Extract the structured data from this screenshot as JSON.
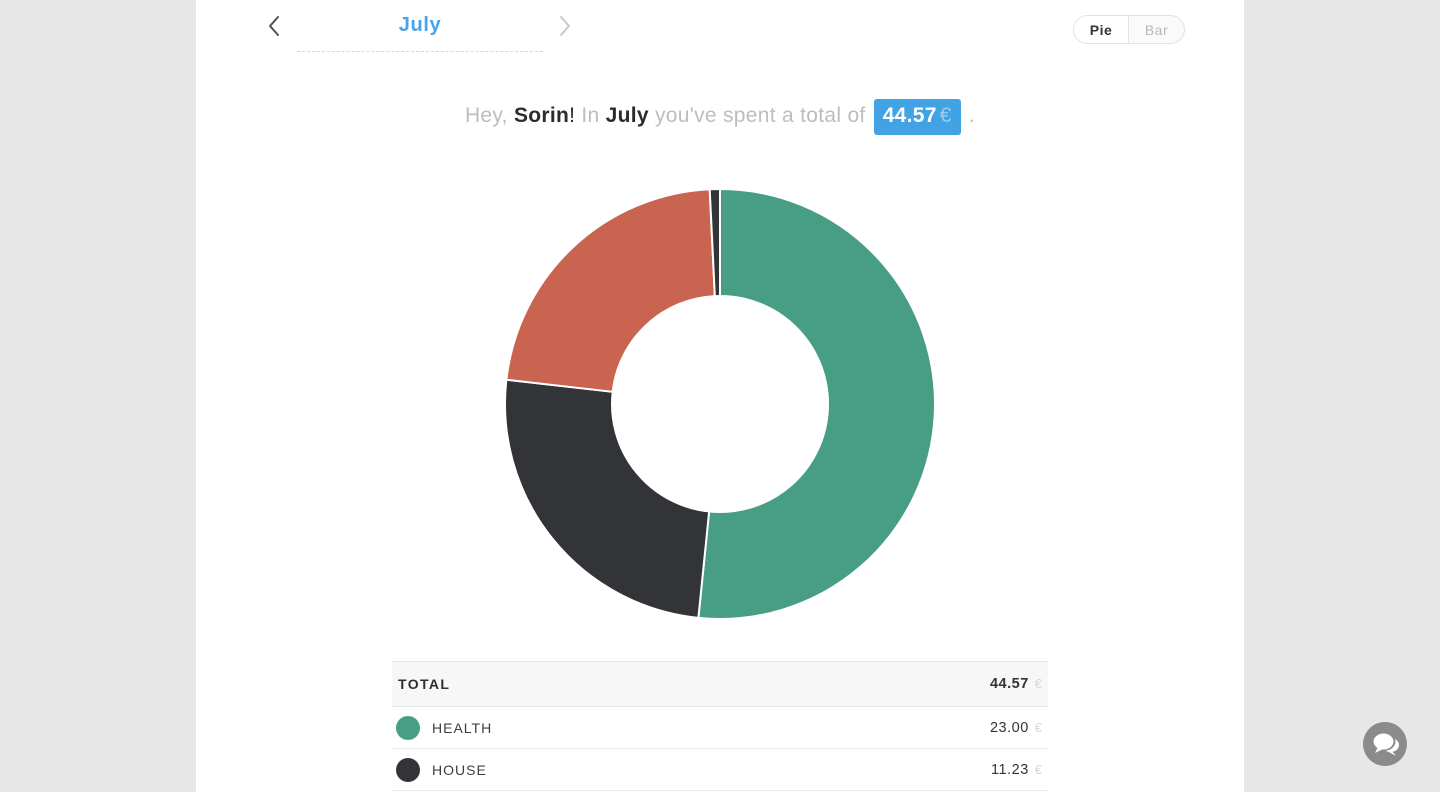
{
  "header": {
    "month": "July",
    "icons": {
      "prev": "chevron-left",
      "next": "chevron-right"
    },
    "toggle": {
      "pie": "Pie",
      "bar": "Bar",
      "active": "Pie"
    }
  },
  "greeting": {
    "segments": [
      {
        "text": "Hey, ",
        "style": "muted"
      },
      {
        "text": "Sorin",
        "style": "bold"
      },
      {
        "text": "!",
        "style": "dark"
      },
      {
        "text": " In ",
        "style": "muted"
      },
      {
        "text": "July",
        "style": "bold"
      },
      {
        "text": " you've spent a total of ",
        "style": "muted"
      }
    ],
    "badge": {
      "value": "44.57",
      "currency": "€"
    },
    "period": "."
  },
  "chart_data": {
    "type": "pie",
    "donut": true,
    "inner_radius_ratio": 0.5,
    "start_angle_deg": 0,
    "direction": "clockwise",
    "unit": "€",
    "total": 44.57,
    "segments": [
      {
        "label": "HEALTH",
        "value": 23.0,
        "color": "#479e85"
      },
      {
        "label": "HOUSE",
        "value": 11.23,
        "color": "#333437"
      },
      {
        "label": null,
        "value": 10.0,
        "color": "#c96450"
      },
      {
        "label": null,
        "value": 0.34,
        "color": "#333437"
      }
    ]
  },
  "table": {
    "total": {
      "label": "TOTAL",
      "value": "44.57",
      "currency": "€"
    },
    "rows": [
      {
        "label": "HEALTH",
        "value": "23.00",
        "currency": "€",
        "color": "#479e85"
      },
      {
        "label": "HOUSE",
        "value": "11.23",
        "currency": "€",
        "color": "#333437"
      }
    ]
  },
  "chat": {
    "icon": "chat-bubbles"
  },
  "colors": {
    "accent_blue": "#41a3e4",
    "green": "#479e85",
    "red": "#c96450",
    "dark": "#333437",
    "page_bg": "#e7e7e7",
    "muted_text": "#bdbdbd",
    "dark_text": "#2b2b2b"
  }
}
